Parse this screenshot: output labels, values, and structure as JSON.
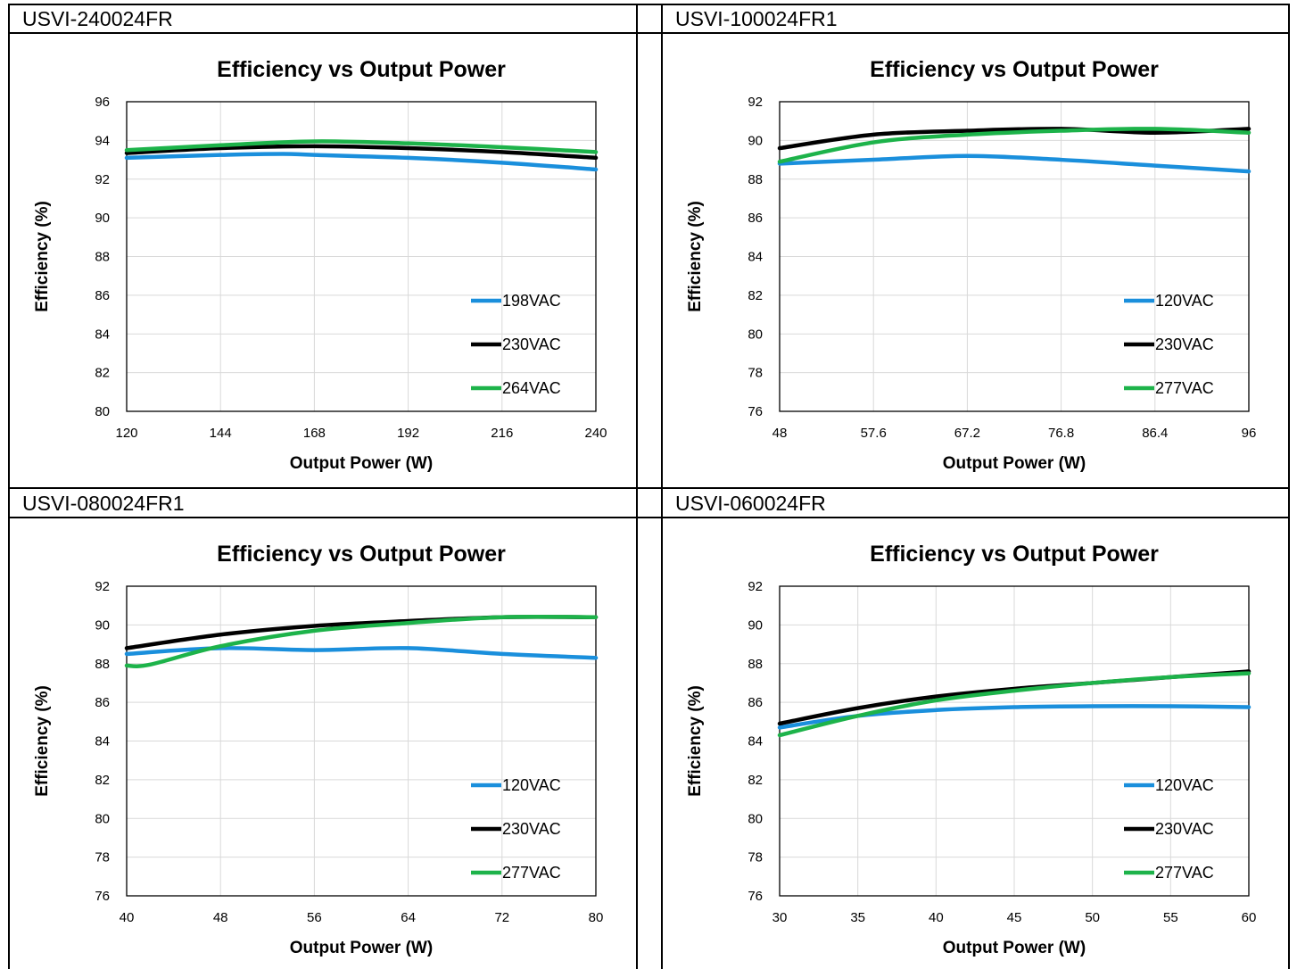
{
  "panels": [
    {
      "model": "USVI-240024FR",
      "chart_data": {
        "type": "line",
        "title": "Efficiency vs Output Power",
        "xlabel": "Output Power (W)",
        "ylabel": "Efficiency (%)",
        "xlim": [
          120,
          240
        ],
        "ylim": [
          80,
          96
        ],
        "xticks": [
          "120",
          "144",
          "168",
          "192",
          "216",
          "240"
        ],
        "yticks": [
          "80",
          "82",
          "84",
          "86",
          "88",
          "90",
          "92",
          "94",
          "96"
        ],
        "grid": true,
        "legend_position": "bottom-right",
        "series": [
          {
            "name": "198VAC",
            "color": "#1a8fdc",
            "x": [
              120,
              144,
              160,
              168,
              192,
              216,
              240
            ],
            "y": [
              93.1,
              93.25,
              93.3,
              93.25,
              93.1,
              92.85,
              92.5
            ]
          },
          {
            "name": "230VAC",
            "color": "#000000",
            "x": [
              120,
              144,
              168,
              192,
              216,
              240
            ],
            "y": [
              93.35,
              93.6,
              93.7,
              93.6,
              93.4,
              93.1
            ]
          },
          {
            "name": "264VAC",
            "color": "#1db34a",
            "x": [
              120,
              144,
              168,
              192,
              216,
              240
            ],
            "y": [
              93.5,
              93.75,
              93.95,
              93.85,
              93.65,
              93.4
            ]
          }
        ]
      }
    },
    {
      "model": "USVI-100024FR1",
      "chart_data": {
        "type": "line",
        "title": "Efficiency vs Output Power",
        "xlabel": "Output Power (W)",
        "ylabel": "Efficiency (%)",
        "xlim": [
          48,
          96
        ],
        "ylim": [
          76,
          92
        ],
        "xticks": [
          "48",
          "57.6",
          "67.2",
          "76.8",
          "86.4",
          "96"
        ],
        "yticks": [
          "76",
          "78",
          "80",
          "82",
          "84",
          "86",
          "88",
          "90",
          "92"
        ],
        "grid": true,
        "legend_position": "bottom-right",
        "series": [
          {
            "name": "120VAC",
            "color": "#1a8fdc",
            "x": [
              48,
              57.6,
              67.2,
              76.8,
              86.4,
              96
            ],
            "y": [
              88.8,
              89.0,
              89.2,
              89.0,
              88.7,
              88.4
            ]
          },
          {
            "name": "230VAC",
            "color": "#000000",
            "x": [
              48,
              57.6,
              67.2,
              76.8,
              86.4,
              96
            ],
            "y": [
              89.6,
              90.3,
              90.5,
              90.6,
              90.4,
              90.6
            ]
          },
          {
            "name": "277VAC",
            "color": "#1db34a",
            "x": [
              48,
              57.6,
              67.2,
              76.8,
              86.4,
              96
            ],
            "y": [
              88.9,
              89.9,
              90.3,
              90.5,
              90.6,
              90.4
            ]
          }
        ]
      }
    },
    {
      "model": "USVI-080024FR1",
      "chart_data": {
        "type": "line",
        "title": "Efficiency vs Output Power",
        "xlabel": "Output Power (W)",
        "ylabel": "Efficiency (%)",
        "xlim": [
          40,
          80
        ],
        "ylim": [
          76,
          92
        ],
        "xticks": [
          "40",
          "48",
          "56",
          "64",
          "72",
          "80"
        ],
        "yticks": [
          "76",
          "78",
          "80",
          "82",
          "84",
          "86",
          "88",
          "90",
          "92"
        ],
        "grid": true,
        "legend_position": "bottom-right",
        "series": [
          {
            "name": "120VAC",
            "color": "#1a8fdc",
            "x": [
              40,
              48,
              56,
              64,
              72,
              80
            ],
            "y": [
              88.5,
              88.8,
              88.7,
              88.8,
              88.5,
              88.3
            ]
          },
          {
            "name": "230VAC",
            "color": "#000000",
            "x": [
              40,
              48,
              56,
              64,
              72,
              80
            ],
            "y": [
              88.8,
              89.5,
              89.95,
              90.2,
              90.4,
              90.4
            ]
          },
          {
            "name": "277VAC",
            "color": "#1db34a",
            "x": [
              40,
              42,
              48,
              56,
              64,
              72,
              80
            ],
            "y": [
              87.9,
              87.95,
              88.9,
              89.7,
              90.1,
              90.4,
              90.4
            ]
          }
        ]
      }
    },
    {
      "model": "USVI-060024FR",
      "chart_data": {
        "type": "line",
        "title": "Efficiency vs Output Power",
        "xlabel": "Output Power (W)",
        "ylabel": "Efficiency (%)",
        "xlim": [
          30,
          60
        ],
        "ylim": [
          76,
          92
        ],
        "xticks": [
          "30",
          "35",
          "40",
          "45",
          "50",
          "55",
          "60"
        ],
        "yticks": [
          "76",
          "78",
          "80",
          "82",
          "84",
          "86",
          "88",
          "90",
          "92"
        ],
        "grid": true,
        "legend_position": "bottom-right",
        "series": [
          {
            "name": "120VAC",
            "color": "#1a8fdc",
            "x": [
              30,
              35,
              40,
              45,
              50,
              55,
              60
            ],
            "y": [
              84.7,
              85.3,
              85.6,
              85.75,
              85.8,
              85.8,
              85.75
            ]
          },
          {
            "name": "230VAC",
            "color": "#000000",
            "x": [
              30,
              35,
              40,
              45,
              50,
              55,
              60
            ],
            "y": [
              84.9,
              85.7,
              86.3,
              86.7,
              87.0,
              87.3,
              87.6
            ]
          },
          {
            "name": "277VAC",
            "color": "#1db34a",
            "x": [
              30,
              35,
              40,
              45,
              50,
              55,
              60
            ],
            "y": [
              84.3,
              85.3,
              86.1,
              86.6,
              87.0,
              87.3,
              87.5
            ]
          }
        ]
      }
    }
  ]
}
